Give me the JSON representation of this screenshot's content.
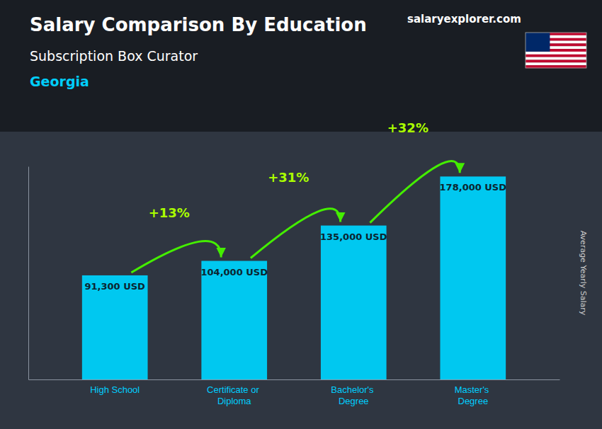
{
  "chart_data": {
    "type": "bar",
    "title": "Salary Comparison By Education",
    "subtitle": "Subscription Box Curator",
    "ylabel": "Average Yearly Salary",
    "categories": [
      "High School",
      "Certificate or\nDiploma",
      "Bachelor's\nDegree",
      "Master's\nDegree"
    ],
    "values": [
      91300,
      104000,
      135000,
      178000
    ],
    "value_labels": [
      "91,300 USD",
      "104,000 USD",
      "135,000 USD",
      "178,000 USD"
    ],
    "data_labels": true,
    "color": "#00c8f0",
    "ylim": [
      0,
      186900
    ],
    "tick_labels": "x",
    "grid": false,
    "annotations": [
      {
        "text": "+13%",
        "from": "High School",
        "to": "Certificate or\nDiploma"
      },
      {
        "text": "+31%",
        "from": "Certificate or\nDiploma",
        "to": "Bachelor's\nDegree"
      },
      {
        "text": "+32%",
        "from": "Bachelor's\nDegree",
        "to": "Master's\nDegree"
      },
      {
        "text": "Georgia"
      },
      {
        "text": "salaryexplorer.com"
      }
    ]
  }
}
